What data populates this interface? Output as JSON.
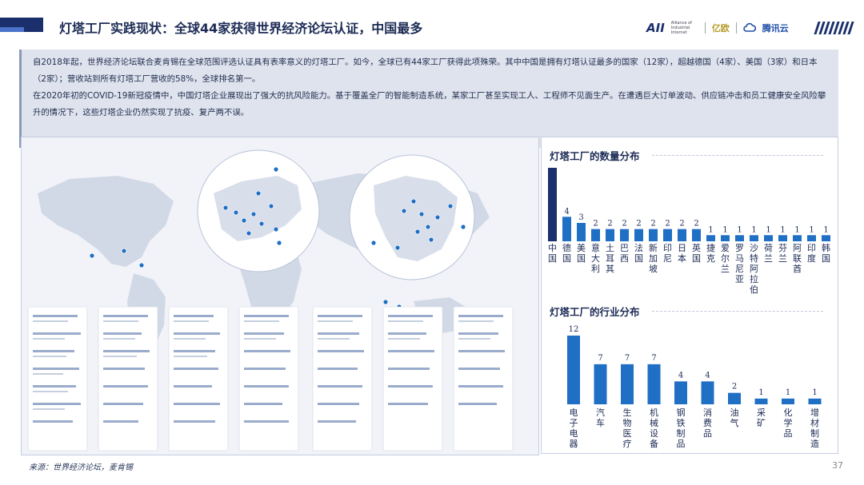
{
  "header": {
    "title": "灯塔工厂实践现状：全球44家获得世界经济论坛认证，中国最多",
    "logos": [
      "AII",
      "亿欧",
      "腾讯云"
    ],
    "aii_subtext": "Alliance of Industrial Internet"
  },
  "intro": {
    "paragraph1": "自2018年起，世界经济论坛联合麦肯锡在全球范围评选认证具有表率意义的灯塔工厂。如今，全球已有44家工厂获得此项殊荣。其中中国是拥有灯塔认证最多的国家（12家），超越德国（4家）、美国（3家）和日本（2家）；营收站到所有灯塔工厂营收的58%，全球排名第一。",
    "paragraph2": "在2020年初的COVID-19新冠疫情中，中国灯塔企业展现出了强大的抗风险能力。基于覆盖全厂的智能制造系统，某家工厂甚至实现工人、工程师不见面生产。在遭遇巨大订单波动、供应链冲击和员工健康安全风险攀升的情况下，这些灯塔企业仍然实现了抗疫、复产两不误。"
  },
  "colors": {
    "primary": "#1a2f6b",
    "accent": "#1f6fc5",
    "bar": "#1f6fc5",
    "china_bar": "#1a2f6b"
  },
  "chart_data": [
    {
      "type": "bar",
      "title": "灯塔工厂的数量分布",
      "categories": [
        "中国",
        "德国",
        "美国",
        "意大利",
        "土耳其",
        "巴西",
        "法国",
        "新加坡",
        "印尼",
        "日本",
        "英国",
        "捷克",
        "爱尔兰",
        "罗马尼亚",
        "沙特阿拉伯",
        "荷兰",
        "芬兰",
        "阿联酋",
        "印度",
        "韩国"
      ],
      "values": [
        12,
        4,
        3,
        2,
        2,
        2,
        2,
        2,
        2,
        2,
        2,
        1,
        1,
        1,
        1,
        1,
        1,
        1,
        1,
        1
      ],
      "value_labels": [
        "",
        "4",
        "3",
        "2",
        "2",
        "2",
        "2",
        "2",
        "2",
        "2",
        "2",
        "1",
        "1",
        "1",
        "1",
        "1",
        "1",
        "1",
        "1",
        "1"
      ],
      "ylim": [
        0,
        12
      ]
    },
    {
      "type": "bar",
      "title": "灯塔工厂的行业分布",
      "categories": [
        "电子电器",
        "汽车",
        "生物医疗",
        "机械设备",
        "钢铁制品",
        "消费品",
        "油气",
        "采矿",
        "化学品",
        "增材制造"
      ],
      "values": [
        12,
        7,
        7,
        7,
        4,
        4,
        2,
        1,
        1,
        1
      ],
      "ylim": [
        0,
        12
      ]
    }
  ],
  "source": "来源：世界经济论坛，麦肯锡",
  "page_number": "37"
}
